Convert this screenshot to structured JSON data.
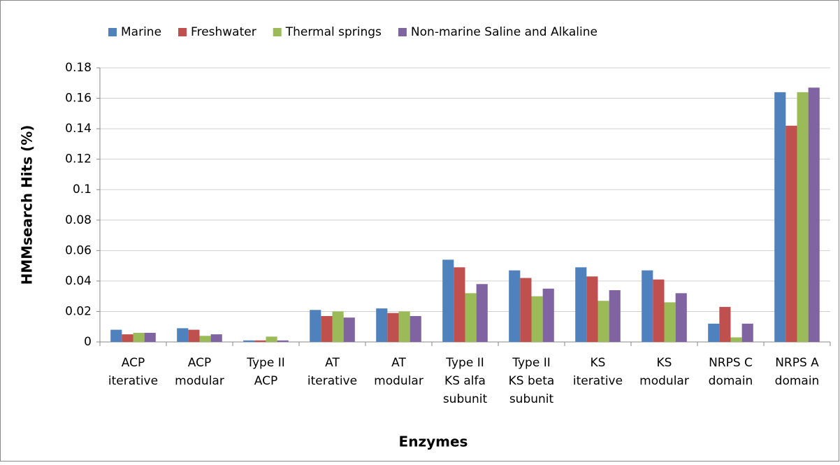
{
  "chart_data": {
    "type": "bar",
    "x_label": "Enzymes",
    "y_label": "HMMsearch Hits (%)",
    "categories": [
      "ACP iterative",
      "ACP modular",
      "Type II ACP",
      "AT iterative",
      "AT modular",
      "Type II KS alfa subunit",
      "Type II KS beta subunit",
      "KS iterative",
      "KS modular",
      "NRPS C domain",
      "NRPS A domain"
    ],
    "series": [
      {
        "name": "Marine",
        "color": "#4f81bd",
        "values": [
          0.008,
          0.009,
          0.001,
          0.021,
          0.022,
          0.054,
          0.047,
          0.049,
          0.047,
          0.012,
          0.164
        ]
      },
      {
        "name": "Freshwater",
        "color": "#c0504d",
        "values": [
          0.005,
          0.008,
          0.001,
          0.017,
          0.019,
          0.049,
          0.042,
          0.043,
          0.041,
          0.023,
          0.142
        ]
      },
      {
        "name": "Thermal springs",
        "color": "#9bbb59",
        "values": [
          0.006,
          0.004,
          0.0035,
          0.02,
          0.02,
          0.032,
          0.03,
          0.027,
          0.026,
          0.003,
          0.164
        ]
      },
      {
        "name": "Non-marine Saline and Alkaline",
        "color": "#8064a2",
        "values": [
          0.006,
          0.005,
          0.001,
          0.016,
          0.017,
          0.038,
          0.035,
          0.034,
          0.032,
          0.012,
          0.167
        ]
      }
    ],
    "ylim": [
      0,
      0.18
    ],
    "yticks": [
      0,
      0.02,
      0.04,
      0.06,
      0.08,
      0.1,
      0.12,
      0.14,
      0.16,
      0.18
    ],
    "grid": true,
    "legend": "top"
  }
}
